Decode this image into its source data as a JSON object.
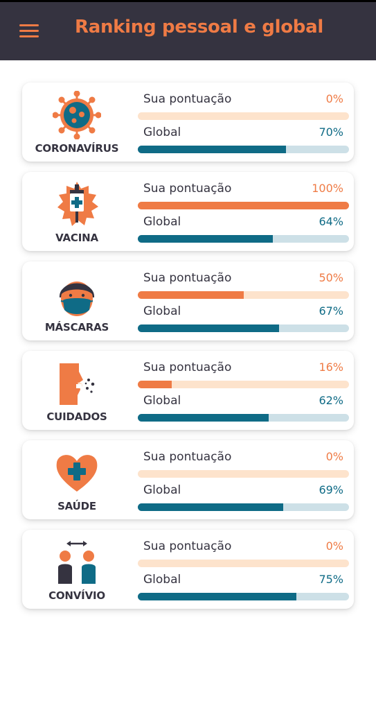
{
  "header": {
    "title": "Ranking pessoal e global",
    "menu_icon": "hamburger-menu-icon"
  },
  "colors": {
    "accent": "#ef7b45",
    "global": "#0f6b86",
    "header_bg": "#353340"
  },
  "labels": {
    "personal": "Sua pontuação",
    "global": "Global"
  },
  "categories": [
    {
      "name": "CORONAVÍRUS",
      "icon": "virus-icon",
      "personal_text": "0%",
      "personal": 0,
      "global_text": "70%",
      "global": 70
    },
    {
      "name": "VACINA",
      "icon": "vaccine-syringe-icon",
      "personal_text": "100%",
      "personal": 100,
      "global_text": "64%",
      "global": 64
    },
    {
      "name": "MÁSCARAS",
      "icon": "face-mask-icon",
      "personal_text": "50%",
      "personal": 50,
      "global_text": "67%",
      "global": 67
    },
    {
      "name": "CUIDADOS",
      "icon": "sneeze-icon",
      "personal_text": "16%",
      "personal": 16,
      "global_text": "62%",
      "global": 62
    },
    {
      "name": "SAÚDE",
      "icon": "health-heart-icon",
      "personal_text": "0%",
      "personal": 0,
      "global_text": "69%",
      "global": 69
    },
    {
      "name": "CONVÍVIO",
      "icon": "social-distance-icon",
      "personal_text": "0%",
      "personal": 0,
      "global_text": "75%",
      "global": 75
    }
  ]
}
